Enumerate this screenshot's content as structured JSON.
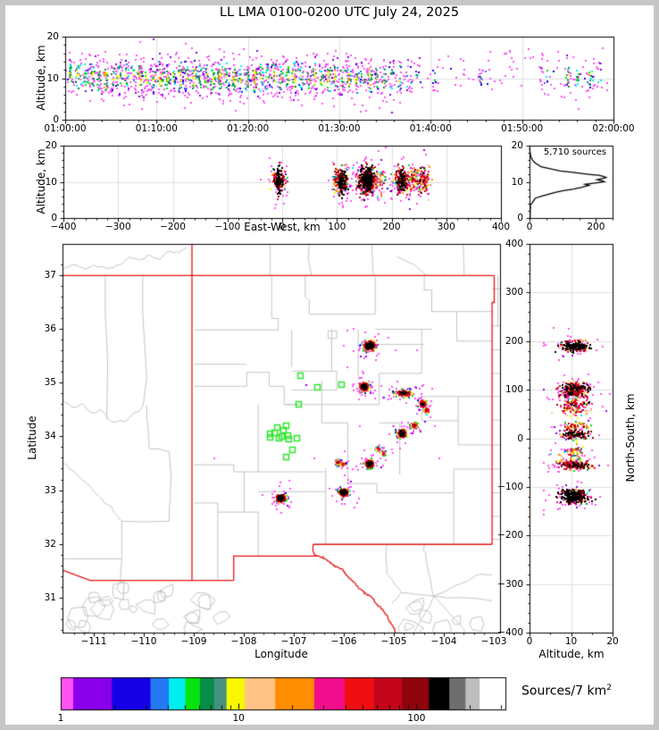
{
  "title": "LL LMA 0100-0200 UTC July 24, 2025",
  "panels": {
    "time_height": {
      "ylabel": "Altitude, km",
      "x_tick_labels": [
        "01:00:00",
        "01:10:00",
        "01:20:00",
        "01:30:00",
        "01:40:00",
        "01:50:00",
        "02:00:00"
      ],
      "y_tick_labels": [
        "0",
        "10",
        "20"
      ],
      "xlim_seconds": [
        0,
        3600
      ],
      "ylim_km": [
        0,
        20
      ]
    },
    "ew_height": {
      "xlabel": "East-West, km",
      "ylabel": "Altitude, km",
      "x_tick_labels": [
        "−400",
        "−300",
        "−200",
        "−100",
        "0",
        "100",
        "200",
        "300",
        "400"
      ],
      "x_ticks": [
        -400,
        -300,
        -200,
        -100,
        0,
        100,
        200,
        300,
        400
      ],
      "y_tick_labels": [
        "0",
        "10",
        "20"
      ],
      "xlim_km": [
        -400,
        400
      ],
      "ylim_km": [
        0,
        20
      ]
    },
    "alt_histogram": {
      "annotation": "5,710 sources",
      "x_tick_labels": [
        "0",
        "200"
      ],
      "x_ticks": [
        0,
        200
      ],
      "xlim": [
        0,
        250
      ],
      "y_tick_labels": [
        "0",
        "10",
        "20"
      ]
    },
    "map": {
      "xlabel": "Longitude",
      "ylabel": "Latitude",
      "lon_tick_labels": [
        "−111",
        "−110",
        "−109",
        "−108",
        "−107",
        "−106",
        "−105",
        "−104",
        "−103"
      ],
      "lon_ticks": [
        -111,
        -110,
        -109,
        -108,
        -107,
        -106,
        -105,
        -104,
        -103
      ],
      "lat_tick_labels": [
        "31",
        "32",
        "33",
        "34",
        "35",
        "36",
        "37"
      ],
      "lat_ticks": [
        31,
        32,
        33,
        34,
        35,
        36,
        37
      ],
      "lon_lim": [
        -111.625,
        -102.875
      ],
      "lat_lim": [
        30.35,
        37.58
      ],
      "state_border_color": "#e81414",
      "county_line_color": "#c4c4c4",
      "station_color": "#2ee62e"
    },
    "ns_height": {
      "xlabel": "Altitude, km",
      "ylabel": "North-South, km",
      "x_tick_labels": [
        "0",
        "10",
        "20"
      ],
      "x_ticks": [
        0,
        10,
        20
      ],
      "y_tick_labels": [
        "400",
        "300",
        "200",
        "100",
        "0",
        "−100",
        "−200",
        "−300",
        "−400"
      ],
      "y_ticks": [
        400,
        300,
        200,
        100,
        0,
        -100,
        -200,
        -300,
        -400
      ],
      "xlim_km": [
        0,
        20
      ],
      "ylim_km": [
        -400,
        400
      ]
    }
  },
  "colorbar": {
    "label_main": "Sources/7 km",
    "label_sup": "2",
    "tick_labels": [
      "1",
      "10",
      "100"
    ],
    "tick_values": [
      1,
      10,
      100
    ],
    "decades": 2.5,
    "colors": [
      "#ff52f5",
      "#8a00ea",
      "#1500e8",
      "#2579f2",
      "#00eeee",
      "#06e30e",
      "#068d48",
      "#47907f",
      "#f8f800",
      "#ffc385",
      "#ff8d00",
      "#f20d8c",
      "#ef0f12",
      "#c4051c",
      "#8f030c",
      "#000000",
      "#6e6e6e",
      "#bdbdbd",
      "#ffffff"
    ],
    "widths": [
      0.03,
      0.093,
      0.093,
      0.044,
      0.04,
      0.035,
      0.034,
      0.03,
      0.044,
      0.073,
      0.094,
      0.073,
      0.071,
      0.067,
      0.065,
      0.049,
      0.039,
      0.034,
      0.062
    ]
  },
  "chart_data": {
    "type": "scatter",
    "title": "LL LMA 0100-0200 UTC July 24, 2025",
    "source_count_label": "5,710 sources",
    "lma_center_lonlat": [
      -107.19,
      33.98
    ],
    "stations_lonlat": [
      [
        -106.87,
        35.14
      ],
      [
        -106.54,
        34.92
      ],
      [
        -106.05,
        34.97
      ],
      [
        -106.91,
        34.61
      ],
      [
        -107.49,
        34.05
      ],
      [
        -107.4,
        34.08
      ],
      [
        -107.34,
        34.17
      ],
      [
        -107.16,
        34.2
      ],
      [
        -107.31,
        33.98
      ],
      [
        -107.25,
        34.0
      ],
      [
        -107.13,
        34.03
      ],
      [
        -107.1,
        33.96
      ],
      [
        -106.95,
        33.98
      ],
      [
        -107.04,
        33.76
      ],
      [
        -107.16,
        33.62
      ],
      [
        -107.49,
        33.99
      ],
      [
        -107.22,
        34.12
      ]
    ],
    "flash_clusters": [
      {
        "lon": -105.5,
        "lat": 35.7,
        "n": 230,
        "sx": 0.06,
        "sy": 0.048
      },
      {
        "lon": -105.61,
        "lat": 34.94,
        "n": 170,
        "sx": 0.05,
        "sy": 0.042
      },
      {
        "lon": -104.82,
        "lat": 34.82,
        "n": 130,
        "sx": 0.085,
        "sy": 0.035
      },
      {
        "lon": -104.44,
        "lat": 34.62,
        "n": 90,
        "sx": 0.045,
        "sy": 0.038
      },
      {
        "lon": -104.36,
        "lat": 34.5,
        "n": 55,
        "sx": 0.035,
        "sy": 0.03
      },
      {
        "lon": -104.61,
        "lat": 34.22,
        "n": 60,
        "sx": 0.04,
        "sy": 0.03
      },
      {
        "lon": -104.85,
        "lat": 34.07,
        "n": 150,
        "sx": 0.05,
        "sy": 0.042
      },
      {
        "lon": -105.33,
        "lat": 33.78,
        "n": 40,
        "sx": 0.028,
        "sy": 0.025
      },
      {
        "lon": -105.22,
        "lat": 33.7,
        "n": 40,
        "sx": 0.028,
        "sy": 0.025
      },
      {
        "lon": -105.5,
        "lat": 33.5,
        "n": 150,
        "sx": 0.05,
        "sy": 0.04
      },
      {
        "lon": -106.13,
        "lat": 33.53,
        "n": 55,
        "sx": 0.03,
        "sy": 0.028
      },
      {
        "lon": -106.03,
        "lat": 33.5,
        "n": 45,
        "sx": 0.028,
        "sy": 0.026
      },
      {
        "lon": -106.02,
        "lat": 32.97,
        "n": 190,
        "sx": 0.05,
        "sy": 0.04
      },
      {
        "lon": -107.28,
        "lat": 32.87,
        "n": 190,
        "sx": 0.05,
        "sy": 0.042
      }
    ],
    "stray_points_lonlat": [
      [
        -105.32,
        35.92
      ],
      [
        -105.12,
        35.85
      ],
      [
        -105.6,
        35.47
      ],
      [
        -104.42,
        34.97
      ],
      [
        -106.76,
        34.97
      ],
      [
        -104.2,
        34.2
      ],
      [
        -107.1,
        33.2
      ],
      [
        -106.3,
        33.05
      ],
      [
        -105.8,
        32.7
      ],
      [
        -107.45,
        32.95
      ],
      [
        -106.0,
        33.3
      ],
      [
        -104.95,
        33.9
      ],
      [
        -105.7,
        34.2
      ],
      [
        -106.6,
        33.6
      ],
      [
        -108.6,
        33.6
      ],
      [
        -104.55,
        35.62
      ],
      [
        -105.95,
        35.3
      ],
      [
        -104.1,
        33.6
      ]
    ],
    "altitude_km_mean": 10.6,
    "altitude_histogram_profile": [
      [
        0,
        2
      ],
      [
        2,
        2
      ],
      [
        3,
        3
      ],
      [
        3.5,
        2
      ],
      [
        4,
        6
      ],
      [
        4.5,
        10
      ],
      [
        5,
        14
      ],
      [
        5.5,
        18
      ],
      [
        6,
        38
      ],
      [
        6.5,
        55
      ],
      [
        7,
        75
      ],
      [
        7.5,
        100
      ],
      [
        8,
        130
      ],
      [
        8.5,
        158
      ],
      [
        9,
        178
      ],
      [
        9.3,
        172
      ],
      [
        9.6,
        196
      ],
      [
        10,
        228
      ],
      [
        10.3,
        215
      ],
      [
        10.6,
        205
      ],
      [
        10.9,
        222
      ],
      [
        11.2,
        232
      ],
      [
        11.5,
        226
      ],
      [
        11.8,
        208
      ],
      [
        12,
        188
      ],
      [
        12.3,
        155
      ],
      [
        12.6,
        128
      ],
      [
        13,
        95
      ],
      [
        13.4,
        70
      ],
      [
        13.8,
        52
      ],
      [
        14.2,
        38
      ],
      [
        14.6,
        28
      ],
      [
        15,
        20
      ],
      [
        15.5,
        14
      ],
      [
        16,
        9
      ],
      [
        16.5,
        6
      ],
      [
        17,
        4
      ],
      [
        17.5,
        3
      ],
      [
        18,
        2
      ],
      [
        18.5,
        1
      ],
      [
        19,
        1
      ],
      [
        19.5,
        0
      ]
    ],
    "time_bursts": [
      [
        30,
        28
      ],
      [
        80,
        35
      ],
      [
        125,
        22
      ],
      [
        170,
        40
      ],
      [
        215,
        30
      ],
      [
        260,
        45
      ],
      [
        310,
        25
      ],
      [
        350,
        38
      ],
      [
        395,
        30
      ],
      [
        440,
        20
      ],
      [
        485,
        42
      ],
      [
        530,
        28
      ],
      [
        575,
        35
      ],
      [
        620,
        48
      ],
      [
        665,
        30
      ],
      [
        705,
        25
      ],
      [
        750,
        40
      ],
      [
        795,
        32
      ],
      [
        840,
        45
      ],
      [
        880,
        26
      ],
      [
        925,
        38
      ],
      [
        965,
        30
      ],
      [
        1010,
        50
      ],
      [
        1055,
        28
      ],
      [
        1100,
        42
      ],
      [
        1145,
        24
      ],
      [
        1190,
        36
      ],
      [
        1235,
        46
      ],
      [
        1280,
        30
      ],
      [
        1320,
        26
      ],
      [
        1365,
        40
      ],
      [
        1410,
        34
      ],
      [
        1455,
        28
      ],
      [
        1500,
        44
      ],
      [
        1545,
        30
      ],
      [
        1590,
        24
      ],
      [
        1635,
        38
      ],
      [
        1680,
        28
      ],
      [
        1725,
        46
      ],
      [
        1770,
        32
      ],
      [
        1815,
        26
      ],
      [
        1860,
        38
      ],
      [
        1905,
        30
      ],
      [
        1950,
        24
      ],
      [
        1995,
        34
      ],
      [
        2040,
        26
      ],
      [
        2090,
        30
      ],
      [
        2140,
        22
      ],
      [
        2190,
        26
      ],
      [
        2250,
        18
      ],
      [
        2310,
        14
      ],
      [
        2415,
        10
      ],
      [
        2720,
        12
      ],
      [
        2760,
        8
      ],
      [
        3148,
        16
      ],
      [
        3295,
        26
      ],
      [
        3355,
        20
      ],
      [
        3440,
        22
      ],
      [
        3510,
        6
      ]
    ],
    "sparse_time_points": {
      "t_range_s": [
        2350,
        3560
      ],
      "n": 60,
      "alt_range_km": [
        7,
        17.5
      ]
    }
  }
}
